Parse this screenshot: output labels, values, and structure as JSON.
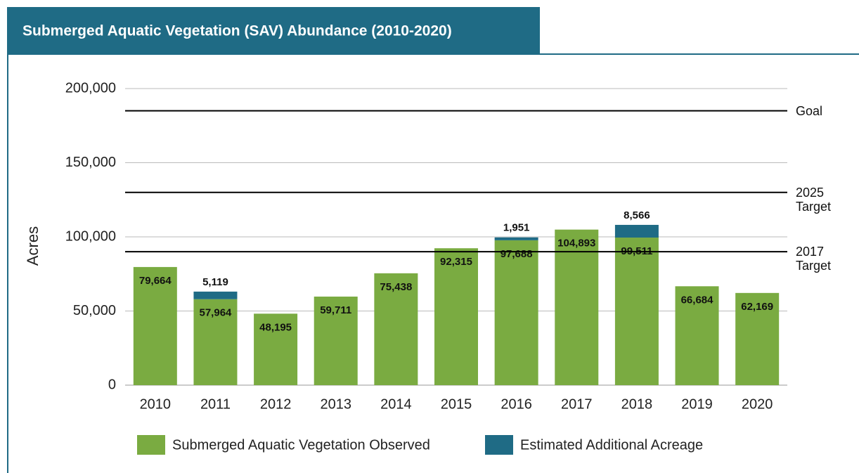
{
  "chart_data": {
    "type": "stacked_bar",
    "title": "Submerged Aquatic Vegetation (SAV) Abundance (2010-2020)",
    "y_label": "Acres",
    "categories": [
      "2010",
      "2011",
      "2012",
      "2013",
      "2014",
      "2015",
      "2016",
      "2017",
      "2018",
      "2019",
      "2020"
    ],
    "series": [
      {
        "name": "Submerged Aquatic Vegetation Observed",
        "color": "#7aab41",
        "values": [
          79664,
          57964,
          48195,
          59711,
          75438,
          92315,
          97688,
          104893,
          99511,
          66684,
          62169
        ],
        "value_labels": [
          "79,664",
          "57,964",
          "48,195",
          "59,711",
          "75,438",
          "92,315",
          "97,688",
          "104,893",
          "99,511",
          "66,684",
          "62,169"
        ]
      },
      {
        "name": "Estimated Additional Acreage",
        "color": "#1f6b85",
        "values": [
          null,
          5119,
          null,
          null,
          null,
          null,
          1951,
          null,
          8566,
          null,
          null
        ],
        "value_labels": [
          null,
          "5,119",
          null,
          null,
          null,
          null,
          "1,951",
          null,
          "8,566",
          null,
          null
        ]
      }
    ],
    "reference_lines": [
      {
        "label": "Goal",
        "value": 185000
      },
      {
        "label": "2025 Target",
        "value": 130000
      },
      {
        "label": "2017 Target",
        "value": 90000
      }
    ],
    "ylim": [
      0,
      200000
    ],
    "yticks": [
      0,
      {
        "value": 50000,
        "label": "50,000"
      },
      {
        "value": 100000,
        "label": "100,000"
      },
      {
        "value": 150000,
        "label": "150,000"
      },
      {
        "value": 200000,
        "label": "200,000"
      }
    ],
    "grid": true,
    "legend": "bottom"
  }
}
